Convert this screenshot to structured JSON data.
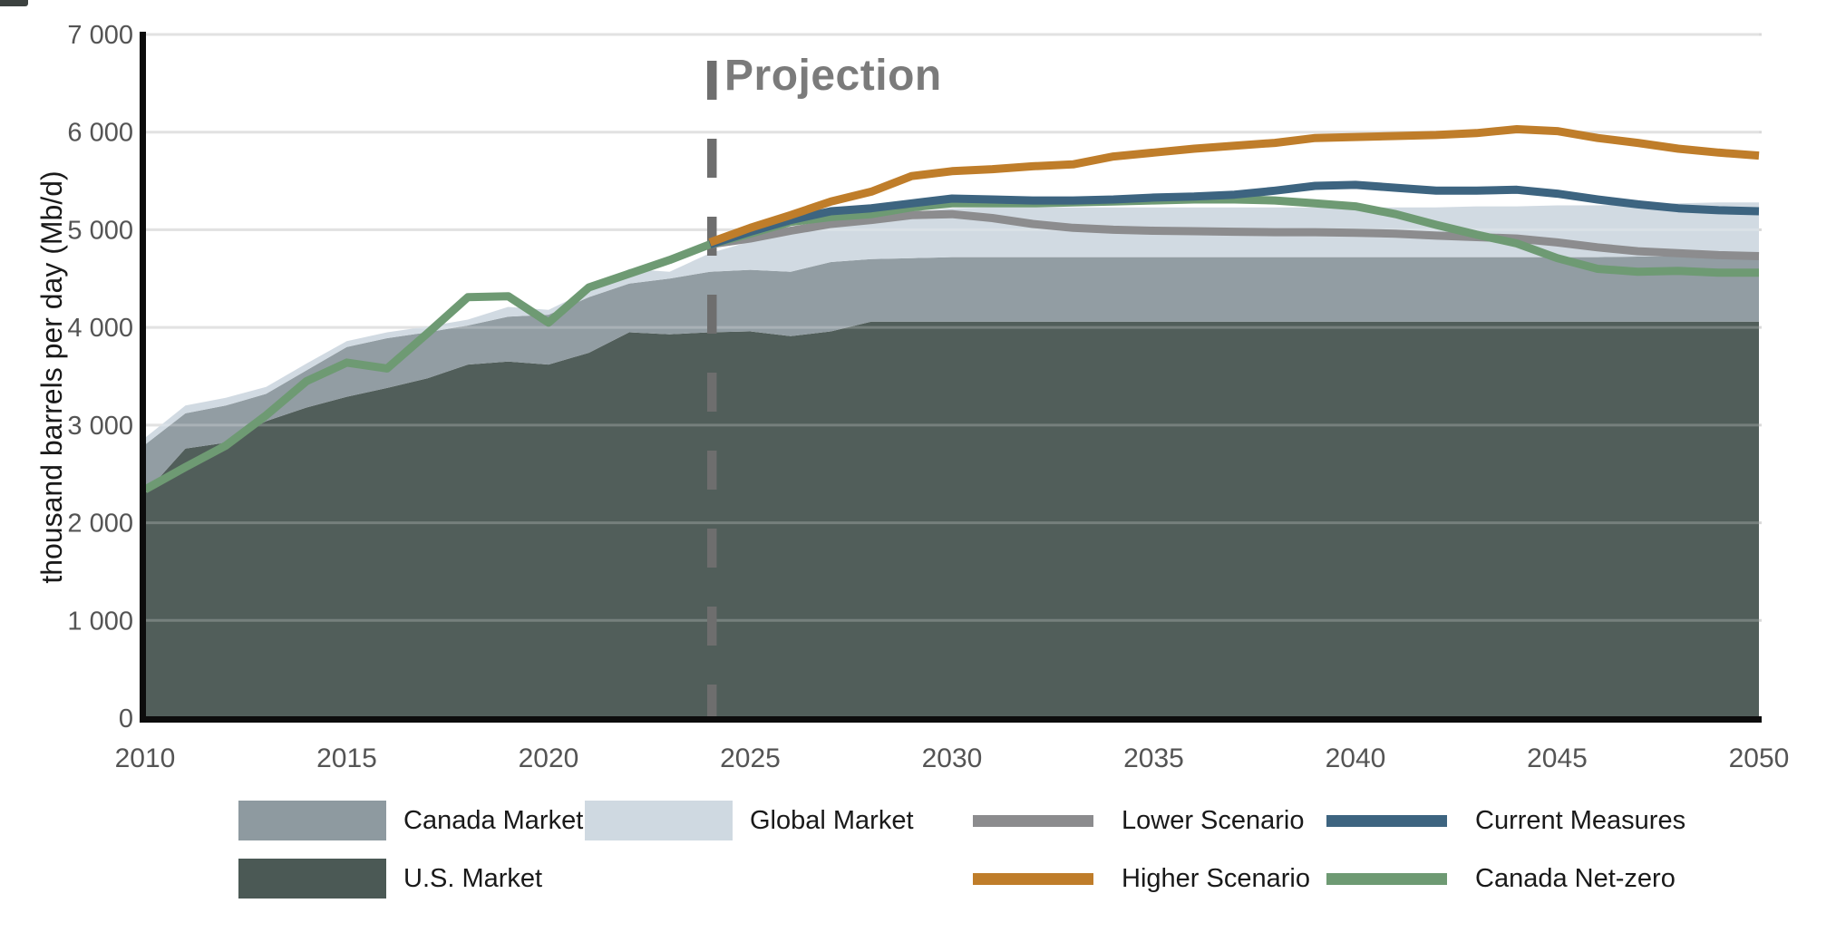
{
  "chart_data": {
    "type": "area+line",
    "title": "",
    "xlabel": "",
    "ylabel": "thousand barrels per day (Mb/d)",
    "ylim": [
      0,
      7000
    ],
    "xlim": [
      2010,
      2050
    ],
    "grid": "horizontal",
    "legend_position": "bottom",
    "unit": "Mb/d",
    "annotations": {
      "projection_label": "Projection",
      "projection_year": 2024
    },
    "y_ticks": [
      {
        "value": 0,
        "label": "0"
      },
      {
        "value": 1000,
        "label": "1 000"
      },
      {
        "value": 2000,
        "label": "2 000"
      },
      {
        "value": 3000,
        "label": "3 000"
      },
      {
        "value": 4000,
        "label": "4 000"
      },
      {
        "value": 5000,
        "label": "5 000"
      },
      {
        "value": 6000,
        "label": "6 000"
      },
      {
        "value": 7000,
        "label": "7 000"
      }
    ],
    "x_ticks": [
      {
        "value": 2010,
        "label": "2010"
      },
      {
        "value": 2015,
        "label": "2015"
      },
      {
        "value": 2020,
        "label": "2020"
      },
      {
        "value": 2025,
        "label": "2025"
      },
      {
        "value": 2030,
        "label": "2030"
      },
      {
        "value": 2035,
        "label": "2035"
      },
      {
        "value": 2040,
        "label": "2040"
      },
      {
        "value": 2045,
        "label": "2045"
      },
      {
        "value": 2050,
        "label": "2050"
      }
    ],
    "years": [
      2010,
      2011,
      2012,
      2013,
      2014,
      2015,
      2016,
      2017,
      2018,
      2019,
      2020,
      2021,
      2022,
      2023,
      2024,
      2025,
      2026,
      2027,
      2028,
      2029,
      2030,
      2031,
      2032,
      2033,
      2034,
      2035,
      2036,
      2037,
      2038,
      2039,
      2040,
      2041,
      2042,
      2043,
      2044,
      2045,
      2046,
      2047,
      2048,
      2049,
      2050
    ],
    "areas_note": "stacked capacity bands; values are cumulative stack tops in Mb/d",
    "areas": [
      {
        "name": "U.S. Market",
        "color": "#4B5955",
        "cumulative": [
          2300,
          2760,
          2820,
          3040,
          3180,
          3290,
          3380,
          3480,
          3620,
          3650,
          3620,
          3740,
          3950,
          3930,
          3950,
          3960,
          3910,
          3960,
          4060,
          4060,
          4060,
          4060,
          4060,
          4060,
          4060,
          4060,
          4060,
          4060,
          4060,
          4060,
          4060,
          4060,
          4060,
          4060,
          4060,
          4060,
          4060,
          4060,
          4060,
          4060,
          4060
        ]
      },
      {
        "name": "Canada Market",
        "color": "#8E9AA0",
        "cumulative": [
          2800,
          3120,
          3200,
          3320,
          3560,
          3800,
          3890,
          3950,
          4020,
          4110,
          4130,
          4310,
          4450,
          4500,
          4570,
          4590,
          4570,
          4670,
          4700,
          4710,
          4720,
          4720,
          4720,
          4720,
          4720,
          4720,
          4720,
          4720,
          4720,
          4720,
          4720,
          4720,
          4720,
          4720,
          4720,
          4720,
          4720,
          4725,
          4725,
          4730,
          4730
        ]
      },
      {
        "name": "Global Market",
        "color": "#CFD9E1",
        "cumulative": [
          2870,
          3200,
          3280,
          3390,
          3630,
          3860,
          3950,
          4010,
          4080,
          4210,
          4180,
          4380,
          4600,
          4570,
          4760,
          4880,
          4960,
          5060,
          5130,
          5180,
          5220,
          5230,
          5230,
          5230,
          5230,
          5230,
          5230,
          5230,
          5230,
          5230,
          5230,
          5230,
          5230,
          5240,
          5240,
          5250,
          5250,
          5260,
          5270,
          5280,
          5280
        ]
      }
    ],
    "lines": [
      {
        "name": "Lower Scenario",
        "color": "#8C8C8E",
        "start_year": 2024,
        "values": [
          4850,
          4910,
          4990,
          5060,
          5100,
          5150,
          5160,
          5120,
          5060,
          5020,
          5000,
          4990,
          4985,
          4980,
          4975,
          4975,
          4970,
          4960,
          4940,
          4925,
          4910,
          4870,
          4820,
          4780,
          4760,
          4740,
          4730
        ]
      },
      {
        "name": "Canada Net-zero",
        "color": "#6E9A73",
        "start_year": 2010,
        "values": [
          2340,
          2570,
          2790,
          3100,
          3450,
          3640,
          3580,
          3940,
          4310,
          4320,
          4050,
          4410,
          4550,
          4690,
          4850,
          4960,
          5080,
          5130,
          5160,
          5230,
          5270,
          5270,
          5270,
          5280,
          5290,
          5300,
          5310,
          5310,
          5300,
          5270,
          5240,
          5160,
          5050,
          4950,
          4860,
          4710,
          4600,
          4570,
          4580,
          4560,
          4560
        ]
      },
      {
        "name": "Current Measures",
        "color": "#3D6480",
        "start_year": 2024,
        "values": [
          4850,
          4980,
          5100,
          5190,
          5220,
          5270,
          5320,
          5310,
          5300,
          5300,
          5310,
          5330,
          5340,
          5360,
          5400,
          5450,
          5460,
          5430,
          5400,
          5400,
          5410,
          5370,
          5310,
          5260,
          5220,
          5200,
          5190
        ]
      },
      {
        "name": "Higher Scenario",
        "color": "#BF7D2A",
        "start_year": 2024,
        "values": [
          4870,
          5020,
          5150,
          5290,
          5390,
          5550,
          5600,
          5620,
          5650,
          5670,
          5750,
          5790,
          5830,
          5860,
          5890,
          5940,
          5950,
          5960,
          5970,
          5990,
          6030,
          6010,
          5940,
          5890,
          5830,
          5790,
          5760
        ]
      }
    ],
    "colors": {
      "grid": "#DADADA",
      "axis": "#0c0c0c",
      "tick_text": "#545454",
      "projection_dash": "#6E6E6E",
      "projection_text": "#7b7b7b"
    }
  },
  "legend": {
    "columns": [
      {
        "items": [
          {
            "label": "Canada Market",
            "swatch": "area",
            "color": "#8E9AA0"
          },
          {
            "label": "U.S. Market",
            "swatch": "area",
            "color": "#4B5955"
          }
        ]
      },
      {
        "items": [
          {
            "label": "Global Market",
            "swatch": "area",
            "color": "#CFD9E1"
          }
        ]
      },
      {
        "items": [
          {
            "label": "Lower Scenario",
            "swatch": "line",
            "color": "#8C8C8E"
          },
          {
            "label": "Higher Scenario",
            "swatch": "line",
            "color": "#BF7D2A"
          }
        ]
      },
      {
        "items": [
          {
            "label": "Current Measures",
            "swatch": "line",
            "color": "#3D6480"
          },
          {
            "label": "Canada Net-zero",
            "swatch": "line",
            "color": "#6E9A73"
          }
        ]
      }
    ]
  }
}
